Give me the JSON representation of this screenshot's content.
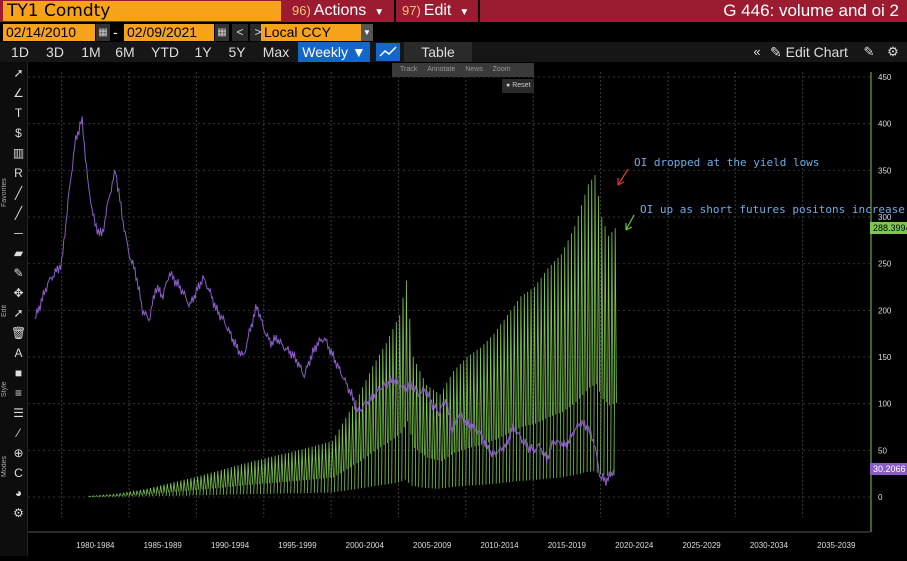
{
  "header": {
    "security": "TY1 Comdty",
    "actions_num": "96)",
    "actions_label": "Actions",
    "edit_num": "97)",
    "edit_label": "Edit",
    "chart_title": "G 446: volume and oi 2"
  },
  "dates": {
    "start": "02/14/2010",
    "end": "02/09/2021",
    "dash": "-",
    "currency": "Local CCY"
  },
  "toolbar": {
    "periods": [
      "1D",
      "3D",
      "1M",
      "6M",
      "YTD",
      "1Y",
      "5Y",
      "Max"
    ],
    "frequency": "Weekly ▼",
    "table_label": "Table",
    "edit_chart": "Edit Chart"
  },
  "sidebar": {
    "favorites": "Favorites",
    "edit": "Edit",
    "style": "Style",
    "modes": "Modes"
  },
  "overlay": {
    "track": "Track",
    "annotate": "Annotate",
    "news": "News",
    "zoom": "Zoom",
    "reset": "Reset"
  },
  "annotations": {
    "oi_dropped": "OI dropped at the yield lows",
    "oi_up": "OI up as short futures positons increase"
  },
  "colors": {
    "price": "#8a5cc6",
    "oi": "#7ec850",
    "accent_orange": "#f7a21b",
    "header_red": "#9b1b30",
    "active_blue": "#1467c8",
    "annot_blue": "#6aaee8",
    "arrow_red": "#e0362b",
    "arrow_green": "#6ec43c"
  },
  "chart_data": {
    "type": "line",
    "x_ticks": [
      "1980-1984",
      "1985-1989",
      "1990-1994",
      "1995-1999",
      "2000-2004",
      "2005-2009",
      "2010-2014",
      "2015-2019",
      "2020-2024",
      "2025-2029",
      "2030-2034",
      "2035-2039"
    ],
    "y_ticks": [
      0,
      50,
      100,
      150,
      200,
      250,
      300,
      350,
      400,
      450
    ],
    "ylim": [
      0,
      450
    ],
    "last_values": {
      "oi": "288.3994",
      "price": "30.2066"
    },
    "series": [
      {
        "kind": "price",
        "points": [
          [
            1978,
            190
          ],
          [
            1979,
            230
          ],
          [
            1980,
            250
          ],
          [
            1980.5,
            320
          ],
          [
            1981,
            380
          ],
          [
            1981.5,
            405
          ],
          [
            1982,
            330
          ],
          [
            1982.5,
            290
          ],
          [
            1983,
            280
          ],
          [
            1983.5,
            320
          ],
          [
            1984,
            350
          ],
          [
            1984.5,
            300
          ],
          [
            1985,
            260
          ],
          [
            1985.5,
            240
          ],
          [
            1986,
            200
          ],
          [
            1986.5,
            190
          ],
          [
            1987,
            225
          ],
          [
            1987.5,
            215
          ],
          [
            1988,
            240
          ],
          [
            1988.5,
            230
          ],
          [
            1989,
            220
          ],
          [
            1989.5,
            205
          ],
          [
            1990,
            220
          ],
          [
            1990.5,
            235
          ],
          [
            1991,
            220
          ],
          [
            1991.5,
            200
          ],
          [
            1992,
            190
          ],
          [
            1992.5,
            175
          ],
          [
            1993,
            160
          ],
          [
            1993.5,
            150
          ],
          [
            1994,
            180
          ],
          [
            1994.5,
            205
          ],
          [
            1995,
            180
          ],
          [
            1995.5,
            165
          ],
          [
            1996,
            170
          ],
          [
            1996.5,
            160
          ],
          [
            1997,
            155
          ],
          [
            1997.5,
            145
          ],
          [
            1998,
            130
          ],
          [
            1998.5,
            150
          ],
          [
            1999,
            165
          ],
          [
            1999.5,
            170
          ],
          [
            2000,
            155
          ],
          [
            2000.5,
            140
          ],
          [
            2001,
            125
          ],
          [
            2001.5,
            110
          ],
          [
            2002,
            90
          ],
          [
            2002.5,
            100
          ],
          [
            2003,
            105
          ],
          [
            2003.5,
            115
          ],
          [
            2004,
            120
          ],
          [
            2004.5,
            125
          ],
          [
            2005,
            122
          ],
          [
            2005.5,
            115
          ],
          [
            2006,
            120
          ],
          [
            2006.5,
            110
          ],
          [
            2007,
            115
          ],
          [
            2007.5,
            100
          ],
          [
            2008,
            90
          ],
          [
            2008.5,
            105
          ],
          [
            2009,
            70
          ],
          [
            2009.5,
            90
          ],
          [
            2010,
            80
          ],
          [
            2010.5,
            75
          ],
          [
            2011,
            70
          ],
          [
            2011.5,
            55
          ],
          [
            2012,
            45
          ],
          [
            2012.5,
            50
          ],
          [
            2013,
            55
          ],
          [
            2013.5,
            75
          ],
          [
            2014,
            65
          ],
          [
            2014.5,
            55
          ],
          [
            2015,
            50
          ],
          [
            2015.5,
            55
          ],
          [
            2016,
            40
          ],
          [
            2016.5,
            60
          ],
          [
            2017,
            58
          ],
          [
            2017.5,
            55
          ],
          [
            2018,
            70
          ],
          [
            2018.5,
            80
          ],
          [
            2019,
            75
          ],
          [
            2019.5,
            60
          ],
          [
            2020,
            20
          ],
          [
            2020.5,
            18
          ],
          [
            2021,
            30
          ]
        ]
      },
      {
        "kind": "oi",
        "points": [
          [
            1982,
            1
          ],
          [
            1984,
            3
          ],
          [
            1986,
            8
          ],
          [
            1988,
            15
          ],
          [
            1990,
            22
          ],
          [
            1992,
            30
          ],
          [
            1994,
            38
          ],
          [
            1996,
            45
          ],
          [
            1998,
            52
          ],
          [
            2000,
            60
          ],
          [
            2001,
            85
          ],
          [
            2002,
            110
          ],
          [
            2003,
            140
          ],
          [
            2004,
            165
          ],
          [
            2005,
            195
          ],
          [
            2005.5,
            232
          ],
          [
            2006,
            150
          ],
          [
            2007,
            120
          ],
          [
            2008,
            110
          ],
          [
            2009,
            135
          ],
          [
            2010,
            150
          ],
          [
            2011,
            160
          ],
          [
            2012,
            175
          ],
          [
            2013,
            195
          ],
          [
            2014,
            215
          ],
          [
            2015,
            225
          ],
          [
            2016,
            245
          ],
          [
            2017,
            260
          ],
          [
            2018,
            290
          ],
          [
            2019,
            335
          ],
          [
            2019.5,
            345
          ],
          [
            2020,
            300
          ],
          [
            2020.5,
            280
          ],
          [
            2021,
            288
          ]
        ]
      }
    ]
  }
}
